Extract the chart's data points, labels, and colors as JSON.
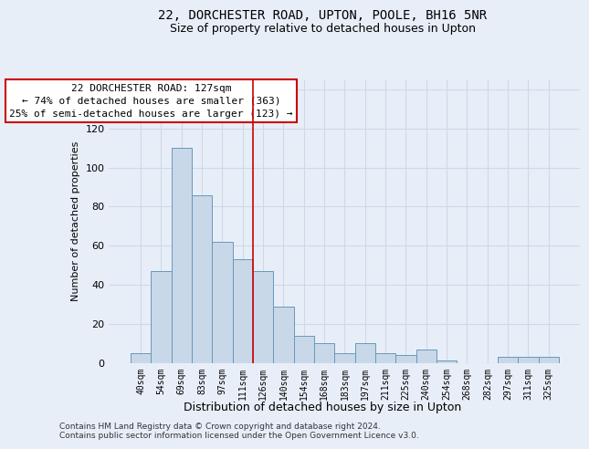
{
  "title1": "22, DORCHESTER ROAD, UPTON, POOLE, BH16 5NR",
  "title2": "Size of property relative to detached houses in Upton",
  "xlabel": "Distribution of detached houses by size in Upton",
  "ylabel": "Number of detached properties",
  "categories": [
    "40sqm",
    "54sqm",
    "69sqm",
    "83sqm",
    "97sqm",
    "111sqm",
    "126sqm",
    "140sqm",
    "154sqm",
    "168sqm",
    "183sqm",
    "197sqm",
    "211sqm",
    "225sqm",
    "240sqm",
    "254sqm",
    "268sqm",
    "282sqm",
    "297sqm",
    "311sqm",
    "325sqm"
  ],
  "values": [
    5,
    47,
    110,
    86,
    62,
    53,
    47,
    29,
    14,
    10,
    5,
    10,
    5,
    4,
    7,
    1,
    0,
    0,
    3,
    3,
    3
  ],
  "bar_color": "#c8d8e8",
  "bar_edge_color": "#6699bb",
  "grid_color": "#d0d8e8",
  "bg_color": "#e8eef8",
  "property_line_color": "#cc0000",
  "annotation_text": "22 DORCHESTER ROAD: 127sqm\n← 74% of detached houses are smaller (363)\n25% of semi-detached houses are larger (123) →",
  "annotation_box_color": "#ffffff",
  "annotation_box_edge": "#cc0000",
  "ylim": [
    0,
    145
  ],
  "footer1": "Contains HM Land Registry data © Crown copyright and database right 2024.",
  "footer2": "Contains public sector information licensed under the Open Government Licence v3.0."
}
